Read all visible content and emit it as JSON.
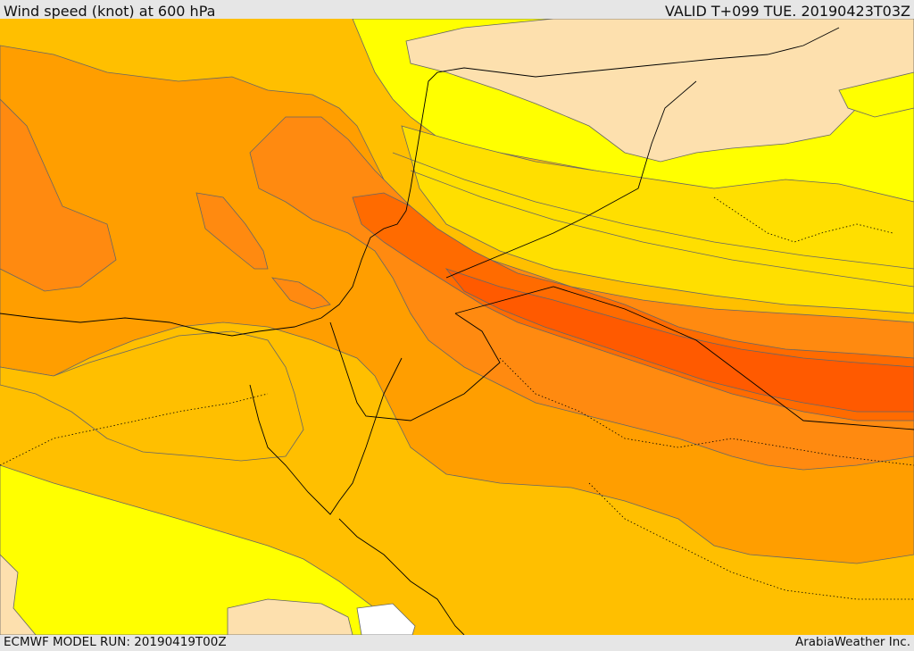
{
  "header": {
    "title": "Wind speed (knot) at 600 hPa",
    "valid": "VALID T+099 TUE. 20190423T03Z"
  },
  "footer": {
    "model_run": "ECMWF MODEL RUN: 20190419T00Z",
    "credit": "ArabiaWeather Inc."
  },
  "colors": {
    "band_1": "#ffffff",
    "band_2": "#fde0ae",
    "band_3": "#ffff00",
    "band_4": "#ffdf00",
    "band_5": "#ffbf00",
    "band_6": "#ff9e00",
    "band_7": "#ff8a10",
    "band_8": "#ff6b00",
    "band_9": "#ff5a00",
    "contour": "#666666",
    "border": "#000000"
  }
}
